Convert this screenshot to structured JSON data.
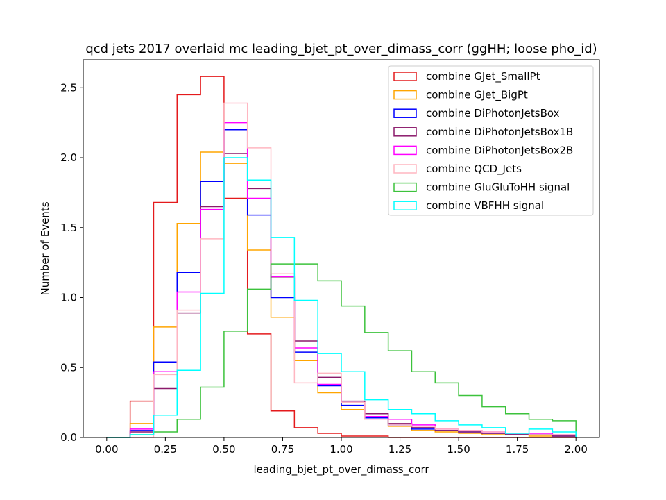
{
  "chart_data": {
    "type": "step histogram",
    "title": "qcd jets 2017 overlaid mc leading_bjet_pt_over_dimass_corr (ggHH; loose pho_id)",
    "xlabel": "leading_bjet_pt_over_dimass_corr",
    "ylabel": "Number of Events",
    "xlim": [
      -0.1,
      2.1
    ],
    "ylim": [
      0,
      2.7
    ],
    "grid": false,
    "legend_position": "top-right",
    "bin_edges": [
      0.0,
      0.1,
      0.2,
      0.3,
      0.4,
      0.5,
      0.6,
      0.7,
      0.8,
      0.9,
      1.0,
      1.1,
      1.2,
      1.3,
      1.4,
      1.5,
      1.6,
      1.7,
      1.8,
      1.9,
      2.0
    ],
    "x_ticks": [
      "0.00",
      "0.25",
      "0.50",
      "0.75",
      "1.00",
      "1.25",
      "1.50",
      "1.75",
      "2.00"
    ],
    "y_ticks": [
      "0.0",
      "0.5",
      "1.0",
      "1.5",
      "2.0",
      "2.5"
    ],
    "series": [
      {
        "name": "combine GJet_SmallPt",
        "color": "#e41a1c",
        "values": [
          0,
          0.26,
          1.68,
          2.45,
          2.58,
          1.71,
          0.74,
          0.19,
          0.07,
          0.03,
          0.01,
          0.01,
          0.0,
          0.0,
          0.0,
          0.0,
          0.0,
          0.0,
          0.0,
          0.0
        ]
      },
      {
        "name": "combine GJet_BigPt",
        "color": "#ffa500",
        "values": [
          0,
          0.1,
          0.79,
          1.53,
          2.04,
          1.96,
          1.34,
          0.86,
          0.55,
          0.32,
          0.2,
          0.13,
          0.08,
          0.05,
          0.04,
          0.03,
          0.02,
          0.02,
          0.01,
          0.01
        ]
      },
      {
        "name": "combine DiPhotonJetsBox",
        "color": "#0000ff",
        "values": [
          0,
          0.05,
          0.54,
          1.18,
          1.83,
          2.2,
          1.59,
          1.0,
          0.61,
          0.37,
          0.23,
          0.14,
          0.09,
          0.06,
          0.05,
          0.04,
          0.03,
          0.02,
          0.02,
          0.01
        ]
      },
      {
        "name": "combine DiPhotonJetsBox1B",
        "color": "#8b1a6b",
        "values": [
          0,
          0.04,
          0.35,
          0.89,
          1.65,
          2.03,
          1.78,
          1.14,
          0.69,
          0.43,
          0.26,
          0.17,
          0.1,
          0.07,
          0.05,
          0.04,
          0.03,
          0.02,
          0.02,
          0.01
        ]
      },
      {
        "name": "combine DiPhotonJetsBox2B",
        "color": "#ff00ff",
        "values": [
          0,
          0.06,
          0.47,
          1.04,
          1.63,
          2.25,
          1.71,
          1.15,
          0.64,
          0.38,
          0.25,
          0.15,
          0.13,
          0.09,
          0.06,
          0.05,
          0.04,
          0.03,
          0.03,
          0.02
        ]
      },
      {
        "name": "combine QCD_Jets",
        "color": "#ffb6c1",
        "values": [
          0,
          0.0,
          0.45,
          0.91,
          1.42,
          2.39,
          2.07,
          1.17,
          0.39,
          0.46,
          0.25,
          0.13,
          0.09,
          0.08,
          0.06,
          0.05,
          0.04,
          0.03,
          0.02,
          0.02
        ]
      },
      {
        "name": "combine GluGluToHH signal",
        "color": "#3cc23c",
        "values": [
          0,
          0.02,
          0.04,
          0.13,
          0.36,
          0.76,
          1.06,
          1.24,
          1.24,
          1.12,
          0.94,
          0.75,
          0.62,
          0.47,
          0.39,
          0.3,
          0.22,
          0.17,
          0.13,
          0.12
        ]
      },
      {
        "name": "combine VBFHH signal",
        "color": "#00ffff",
        "values": [
          0,
          0.02,
          0.16,
          0.48,
          1.03,
          2.0,
          1.84,
          1.43,
          0.98,
          0.6,
          0.47,
          0.27,
          0.2,
          0.17,
          0.12,
          0.09,
          0.07,
          0.03,
          0.06,
          0.04
        ]
      }
    ]
  }
}
